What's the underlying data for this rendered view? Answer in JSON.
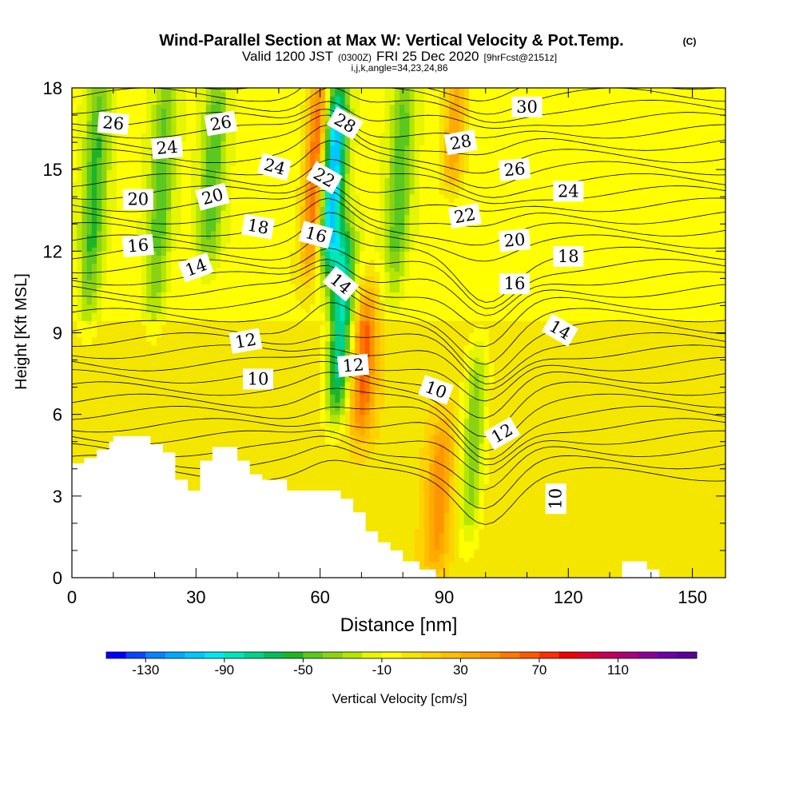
{
  "header": {
    "title": "Wind-Parallel Section at Max W: Vertical Velocity & Pot.Temp.",
    "copyright": "(C)",
    "valid_prefix": "Valid 1200 JST",
    "utc": "(0300Z)",
    "date": "FRI 25 Dec 2020",
    "forecast": "[9hrFcst@2151z]",
    "indices": "i,j,k,angle=34,23,24,86"
  },
  "chart_data": {
    "type": "heatmap",
    "title": "Wind-Parallel Section at Max W: Vertical Velocity & Pot.Temp.",
    "xlabel": "Distance [nm]",
    "ylabel": "Height [Kft MSL]",
    "xlim": [
      0,
      158
    ],
    "ylim": [
      0,
      18
    ],
    "x_ticks": [
      0,
      30,
      60,
      90,
      120,
      150
    ],
    "y_ticks": [
      0,
      3,
      6,
      9,
      12,
      15,
      18
    ],
    "colorbar": {
      "label": "Vertical Velocity [cm/s]",
      "tick_labels": [
        -130,
        -90,
        -50,
        -10,
        30,
        70,
        110
      ],
      "min": -150,
      "max": 150,
      "step": 10,
      "colors": [
        "#0000ff",
        "#0a46ff",
        "#0a82ff",
        "#00aaff",
        "#00c8ff",
        "#00e6f0",
        "#00e6b4",
        "#00d28c",
        "#00be5a",
        "#1eb428",
        "#5ac81e",
        "#8cd214",
        "#b4e600",
        "#e6f500",
        "#ffff00",
        "#f5e600",
        "#ffd200",
        "#ffbe00",
        "#ffaa00",
        "#ff9600",
        "#ff7800",
        "#ff5a00",
        "#ff2d00",
        "#f00000",
        "#dc0032",
        "#c3005a",
        "#aa0078",
        "#8c0096",
        "#6e00aa",
        "#5a0096"
      ]
    },
    "velocity_features": [
      {
        "x": 4,
        "z_range": [
          10,
          18
        ],
        "w": -45
      },
      {
        "x": 20,
        "z_range": [
          10,
          18
        ],
        "w": -40
      },
      {
        "x": 33,
        "z_range": [
          12,
          18
        ],
        "w": -40
      },
      {
        "x": 58,
        "z_range": [
          12,
          18
        ],
        "w": 75
      },
      {
        "x": 62,
        "z_range": [
          12,
          17.5
        ],
        "w": -110
      },
      {
        "x": 64,
        "z_range": [
          6.5,
          12
        ],
        "w": -85
      },
      {
        "x": 70,
        "z_range": [
          6,
          10
        ],
        "w": 55
      },
      {
        "x": 78,
        "z_range": [
          11,
          18
        ],
        "w": -40
      },
      {
        "x": 96,
        "z_range": [
          2,
          8
        ],
        "w": -45
      },
      {
        "x": 88,
        "z_range": [
          1,
          5
        ],
        "w": 40
      },
      {
        "x": 92,
        "z_range": [
          15,
          18
        ],
        "w": 45
      }
    ],
    "theta_contours": {
      "labels": [
        {
          "text": "26",
          "x": 10,
          "z": 16.7,
          "rot": 5
        },
        {
          "text": "26",
          "x": 36,
          "z": 16.7,
          "rot": -10
        },
        {
          "text": "24",
          "x": 23,
          "z": 15.8,
          "rot": -5
        },
        {
          "text": "24",
          "x": 49,
          "z": 15.1,
          "rot": 15
        },
        {
          "text": "20",
          "x": 16,
          "z": 13.9,
          "rot": 0
        },
        {
          "text": "20",
          "x": 34,
          "z": 14.0,
          "rot": -15
        },
        {
          "text": "16",
          "x": 16,
          "z": 12.2,
          "rot": -5
        },
        {
          "text": "14",
          "x": 30,
          "z": 11.4,
          "rot": -20
        },
        {
          "text": "18",
          "x": 45,
          "z": 12.9,
          "rot": 10
        },
        {
          "text": "16",
          "x": 59,
          "z": 12.6,
          "rot": 15
        },
        {
          "text": "22",
          "x": 61,
          "z": 14.7,
          "rot": 30
        },
        {
          "text": "28",
          "x": 66,
          "z": 16.7,
          "rot": 30
        },
        {
          "text": "14",
          "x": 65,
          "z": 10.8,
          "rot": 40
        },
        {
          "text": "12",
          "x": 42,
          "z": 8.7,
          "rot": -10
        },
        {
          "text": "10",
          "x": 45,
          "z": 7.3,
          "rot": 0
        },
        {
          "text": "12",
          "x": 68,
          "z": 7.8,
          "rot": -5
        },
        {
          "text": "10",
          "x": 88,
          "z": 6.9,
          "rot": 20
        },
        {
          "text": "12",
          "x": 104,
          "z": 5.3,
          "rot": -30
        },
        {
          "text": "10",
          "x": 117,
          "z": 2.9,
          "rot": -90
        },
        {
          "text": "28",
          "x": 94,
          "z": 16.0,
          "rot": -10
        },
        {
          "text": "26",
          "x": 107,
          "z": 15.0,
          "rot": -5
        },
        {
          "text": "22",
          "x": 95,
          "z": 13.3,
          "rot": -10
        },
        {
          "text": "20",
          "x": 107,
          "z": 12.4,
          "rot": -5
        },
        {
          "text": "18",
          "x": 120,
          "z": 11.8,
          "rot": 0
        },
        {
          "text": "16",
          "x": 107,
          "z": 10.8,
          "rot": 0
        },
        {
          "text": "14",
          "x": 118,
          "z": 9.1,
          "rot": 30
        },
        {
          "text": "24",
          "x": 120,
          "z": 14.2,
          "rot": 0
        },
        {
          "text": "30",
          "x": 110,
          "z": 17.3,
          "rot": 0
        }
      ]
    },
    "terrain_kft": [
      [
        0,
        4.2
      ],
      [
        3,
        4.2
      ],
      [
        3,
        4.4
      ],
      [
        6,
        4.4
      ],
      [
        6,
        4.7
      ],
      [
        9,
        4.7
      ],
      [
        9,
        5.0
      ],
      [
        10,
        5.0
      ],
      [
        10,
        5.2
      ],
      [
        19,
        5.2
      ],
      [
        19,
        4.9
      ],
      [
        22,
        4.9
      ],
      [
        22,
        4.6
      ],
      [
        25,
        4.6
      ],
      [
        25,
        3.6
      ],
      [
        28,
        3.6
      ],
      [
        28,
        3.2
      ],
      [
        31,
        3.2
      ],
      [
        31,
        4.3
      ],
      [
        34,
        4.3
      ],
      [
        34,
        4.8
      ],
      [
        40,
        4.8
      ],
      [
        40,
        4.3
      ],
      [
        43,
        4.3
      ],
      [
        43,
        3.8
      ],
      [
        46,
        3.8
      ],
      [
        46,
        3.6
      ],
      [
        52,
        3.6
      ],
      [
        52,
        3.2
      ],
      [
        65,
        3.2
      ],
      [
        65,
        2.9
      ],
      [
        68,
        2.9
      ],
      [
        68,
        2.4
      ],
      [
        71,
        2.4
      ],
      [
        71,
        1.7
      ],
      [
        74,
        1.7
      ],
      [
        74,
        1.3
      ],
      [
        77,
        1.3
      ],
      [
        77,
        1.0
      ],
      [
        80,
        1.0
      ],
      [
        80,
        0.6
      ],
      [
        84,
        0.6
      ],
      [
        84,
        0.3
      ],
      [
        88,
        0.3
      ],
      [
        88,
        0.0
      ],
      [
        133,
        0.0
      ],
      [
        133,
        0.6
      ],
      [
        139,
        0.6
      ],
      [
        139,
        0.3
      ],
      [
        142,
        0.3
      ],
      [
        142,
        0.0
      ],
      [
        158,
        0.0
      ]
    ]
  }
}
